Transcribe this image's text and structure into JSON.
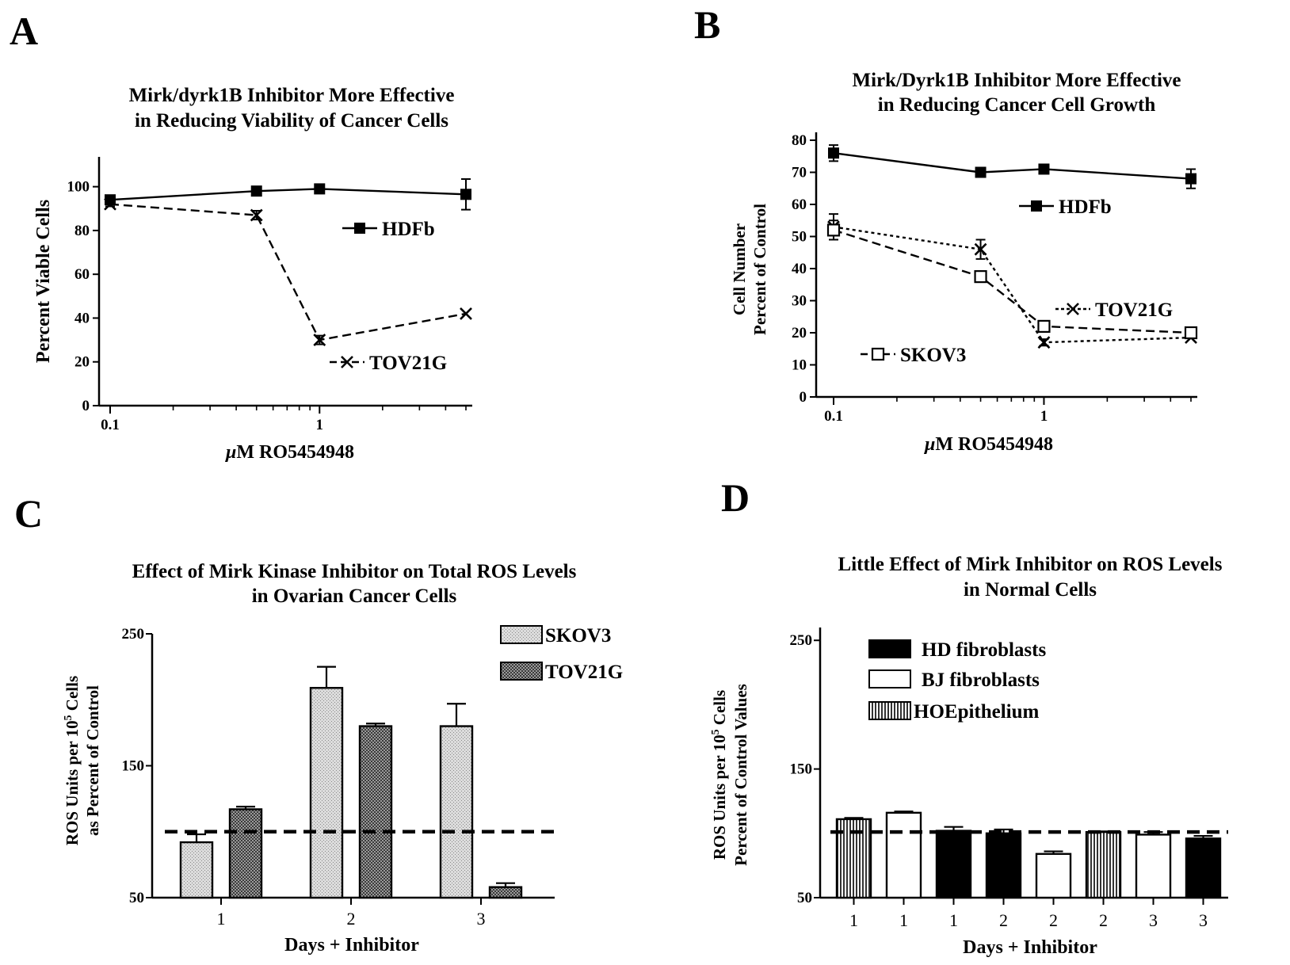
{
  "panels": {
    "A": {
      "label": "A",
      "title": [
        "Mirk/dyrk1B Inhibitor More Effective",
        "in Reducing Viability of Cancer Cells"
      ],
      "ylabel": [
        "Percent Viable Cells"
      ],
      "xlabel_mu": "μ",
      "xlabel_rest": "M RO5454948"
    },
    "B": {
      "label": "B",
      "title": [
        "Mirk/Dyrk1B Inhibitor More Effective",
        "in Reducing Cancer Cell Growth"
      ],
      "ylabel": [
        "Cell Number",
        "Percent of Control"
      ],
      "xlabel_mu": "μ",
      "xlabel_rest": "M RO5454948"
    },
    "C": {
      "label": "C",
      "title": [
        "Effect of Mirk Kinase Inhibitor on Total ROS Levels",
        "in Ovarian Cancer Cells"
      ],
      "ylabel1_pre": "ROS Units per 10",
      "ylabel1_sup": "5",
      "ylabel1_post": " Cells",
      "ylabel2": "as Percent of Control",
      "xlabel": "Days + Inhibitor"
    },
    "D": {
      "label": "D",
      "title": [
        "Little Effect of Mirk Inhibitor on ROS Levels",
        "in Normal Cells"
      ],
      "ylabel1_pre": "ROS Units per 10",
      "ylabel1_sup": "5",
      "ylabel1_post": " Cells",
      "ylabel2": "Percent  of Control Values",
      "xlabel": "Days + Inhibitor"
    }
  },
  "chart_data": [
    {
      "panel": "A",
      "type": "line",
      "x_scale": "log",
      "xlim": [
        0.1,
        5
      ],
      "ylim": [
        0,
        110
      ],
      "x_ticks": [
        0.1,
        1
      ],
      "x_tick_labels": [
        "0.1",
        "1"
      ],
      "y_ticks": [
        0,
        20,
        40,
        60,
        80,
        100
      ],
      "series": [
        {
          "name": "HDFb",
          "marker": "filled-square",
          "line": "solid",
          "x": [
            0.1,
            0.5,
            1,
            5
          ],
          "y": [
            94,
            98,
            99,
            96.5
          ],
          "err": [
            1,
            1,
            1,
            7
          ]
        },
        {
          "name": "TOV21G",
          "marker": "x",
          "line": "dashed",
          "x": [
            0.1,
            0.5,
            1,
            5
          ],
          "y": [
            92,
            87,
            30,
            42
          ],
          "err": [
            1,
            2,
            2,
            0
          ]
        }
      ]
    },
    {
      "panel": "B",
      "type": "line",
      "x_scale": "log",
      "xlim": [
        0.1,
        5
      ],
      "ylim": [
        0,
        80
      ],
      "x_ticks": [
        0.1,
        1
      ],
      "x_tick_labels": [
        "0.1",
        "1"
      ],
      "y_ticks": [
        0,
        10,
        20,
        30,
        40,
        50,
        60,
        70,
        80
      ],
      "series": [
        {
          "name": "HDFb",
          "marker": "filled-square",
          "line": "solid",
          "x": [
            0.1,
            0.5,
            1,
            5
          ],
          "y": [
            76,
            70,
            71,
            68
          ],
          "err": [
            2.5,
            1,
            1,
            3
          ]
        },
        {
          "name": "TOV21G",
          "marker": "x",
          "line": "dotted",
          "x": [
            0.1,
            0.5,
            1,
            5
          ],
          "y": [
            53,
            46,
            17,
            18.5
          ],
          "err": [
            4,
            3,
            1,
            0
          ]
        },
        {
          "name": "SKOV3",
          "marker": "open-square",
          "line": "dashed",
          "x": [
            0.1,
            0.5,
            1,
            5
          ],
          "y": [
            52,
            37.5,
            22,
            20
          ],
          "err": [
            3,
            1,
            1,
            0
          ]
        }
      ]
    },
    {
      "panel": "C",
      "type": "bar",
      "ylim": [
        50,
        250
      ],
      "y_ticks": [
        50,
        150,
        250
      ],
      "reference_line": 100,
      "categories": [
        "1",
        "2",
        "3"
      ],
      "series": [
        {
          "name": "SKOV3",
          "pattern": "light-dots",
          "values": [
            92,
            209,
            180
          ],
          "err": [
            6,
            16,
            17
          ]
        },
        {
          "name": "TOV21G",
          "pattern": "dense-dots",
          "values": [
            117,
            180,
            58
          ],
          "err": [
            2,
            2,
            3
          ]
        }
      ]
    },
    {
      "panel": "D",
      "type": "bar",
      "ylim": [
        50,
        260
      ],
      "y_ticks": [
        50,
        150,
        250
      ],
      "reference_line": 101,
      "categories": [
        "1",
        "1",
        "1",
        "2",
        "2",
        "2",
        "3",
        "3"
      ],
      "bar_series": [
        "HOEpithelium",
        "BJ fibroblasts",
        "HD fibroblasts",
        "HD fibroblasts",
        "BJ fibroblasts",
        "HOEpithelium",
        "BJ fibroblasts",
        "HD fibroblasts"
      ],
      "values": [
        111,
        116,
        102,
        100,
        84,
        101,
        99,
        96
      ],
      "err": [
        1,
        1,
        3,
        3,
        2,
        0.5,
        2,
        2
      ],
      "series": [
        {
          "name": "HD fibroblasts",
          "pattern": "solid-black"
        },
        {
          "name": "BJ fibroblasts",
          "pattern": "white"
        },
        {
          "name": "HOEpithelium",
          "pattern": "vertical-stripes"
        }
      ]
    }
  ]
}
